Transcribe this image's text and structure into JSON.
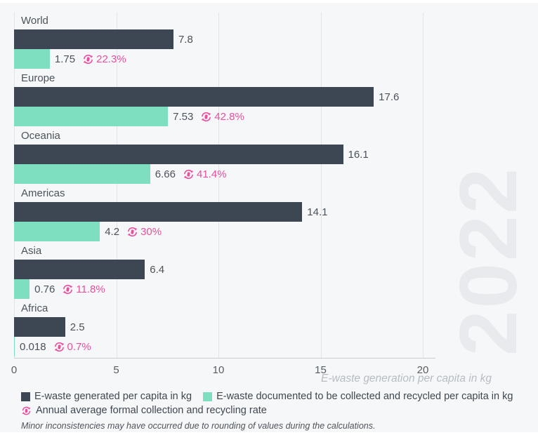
{
  "watermark": "2022",
  "colors": {
    "generated_bar": "#3C4753",
    "recycled_bar": "#7EDEC0",
    "rate_accent": "#EC4D9E"
  },
  "chart_data": {
    "type": "bar",
    "orientation": "horizontal",
    "categories": [
      "World",
      "Europe",
      "Oceania",
      "Americas",
      "Asia",
      "Africa"
    ],
    "series": [
      {
        "name": "E-waste generated per capita in kg",
        "values": [
          7.8,
          17.6,
          16.1,
          14.1,
          6.4,
          2.5
        ],
        "labels": [
          "7.8",
          "17.6",
          "16.1",
          "14.1",
          "6.4",
          "2.5"
        ]
      },
      {
        "name": "E-waste documented to be collected and recycled per capita in kg",
        "values": [
          1.75,
          7.53,
          6.66,
          4.2,
          0.76,
          0.018
        ],
        "labels": [
          "1.75",
          "7.53",
          "6.66",
          "4.2",
          "0.76",
          "0.018"
        ]
      },
      {
        "name": "Annual average formal collection and recycling rate",
        "values": [
          22.3,
          42.8,
          41.4,
          30,
          11.8,
          0.7
        ],
        "labels": [
          "22.3%",
          "42.8%",
          "41.4%",
          "30%",
          "11.8%",
          "0.7%"
        ]
      }
    ],
    "xlabel": "E-waste generation per capita in kg",
    "xlim": [
      0,
      20
    ],
    "xticks": [
      "0",
      "5",
      "10",
      "15",
      "20"
    ],
    "grid": true,
    "legend_position": "bottom"
  },
  "legend": {
    "generated": "E-waste generated per capita in kg",
    "recycled": "E-waste documented to be collected and recycled per capita in kg",
    "rate": "Annual average formal collection and recycling rate"
  },
  "footnote": "Minor inconsistencies may have occurred due to rounding of values during the calculations."
}
